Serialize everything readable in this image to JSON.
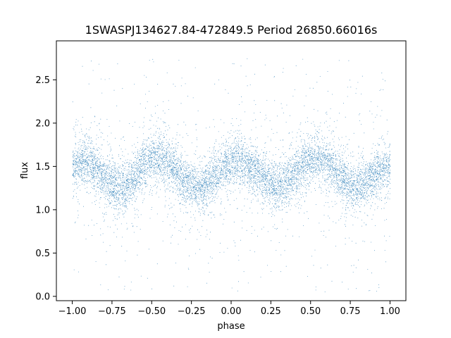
{
  "chart_data": {
    "type": "scatter",
    "title": "1SWASPJ134627.84-472849.5 Period 26850.66016s",
    "xlabel": "phase",
    "ylabel": "flux",
    "xlim": [
      -1.1,
      1.1
    ],
    "ylim": [
      -0.05,
      2.95
    ],
    "x_ticks": [
      -1.0,
      -0.75,
      -0.5,
      -0.25,
      0.0,
      0.25,
      0.5,
      0.75,
      1.0
    ],
    "x_tick_labels": [
      "−1.00",
      "−0.75",
      "−0.50",
      "−0.25",
      "0.00",
      "0.25",
      "0.50",
      "0.75",
      "1.00"
    ],
    "y_ticks": [
      0.0,
      0.5,
      1.0,
      1.5,
      2.0,
      2.5
    ],
    "y_tick_labels": [
      "0.0",
      "0.5",
      "1.0",
      "1.5",
      "2.0",
      "2.5"
    ],
    "grid": false,
    "legend": "none",
    "marker_color": "#1f77b4",
    "series": [
      {
        "x": [
          -1.0,
          -0.95,
          -0.9,
          -0.85,
          -0.8,
          -0.75,
          -0.7,
          -0.65,
          -0.6,
          -0.55,
          -0.5,
          -0.45,
          -0.4,
          -0.35,
          -0.3,
          -0.25,
          -0.2,
          -0.15,
          -0.1,
          -0.05,
          0.0,
          0.05,
          0.1,
          0.15,
          0.2,
          0.25,
          0.3,
          0.35,
          0.4,
          0.45,
          0.5,
          0.55,
          0.6,
          0.65,
          0.7,
          0.75,
          0.8,
          0.85,
          0.9,
          0.95,
          1.0
        ],
        "y": [
          1.5,
          1.56,
          1.55,
          1.48,
          1.38,
          1.3,
          1.26,
          1.3,
          1.42,
          1.52,
          1.58,
          1.6,
          1.55,
          1.45,
          1.35,
          1.28,
          1.25,
          1.3,
          1.4,
          1.5,
          1.55,
          1.58,
          1.52,
          1.44,
          1.36,
          1.3,
          1.28,
          1.33,
          1.43,
          1.52,
          1.58,
          1.6,
          1.55,
          1.46,
          1.36,
          1.29,
          1.26,
          1.31,
          1.4,
          1.47,
          1.5
        ]
      }
    ]
  }
}
